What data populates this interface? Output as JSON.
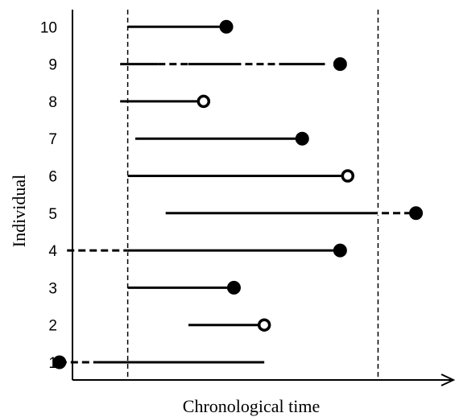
{
  "chart_data": {
    "type": "timeline",
    "xlabel": "Chronological time",
    "ylabel": "Individual",
    "y_ticks": [
      "1",
      "2",
      "3",
      "4",
      "5",
      "6",
      "7",
      "8",
      "9",
      "10"
    ],
    "study_window": {
      "start": 10,
      "end": 43
    },
    "xlim": [
      0,
      50
    ],
    "series": [
      {
        "individual": "1",
        "solid": [
          6,
          28
        ],
        "dashed": [
          [
            1,
            6
          ]
        ],
        "event": {
          "at": 1,
          "kind": "filled"
        }
      },
      {
        "individual": "2",
        "solid": [
          18,
          28
        ],
        "dashed": [],
        "event": {
          "at": 28,
          "kind": "open"
        }
      },
      {
        "individual": "3",
        "solid": [
          10,
          24
        ],
        "dashed": [],
        "event": {
          "at": 24,
          "kind": "filled"
        }
      },
      {
        "individual": "4",
        "solid": [
          10,
          38
        ],
        "dashed": [
          [
            2,
            10
          ]
        ],
        "event": {
          "at": 38,
          "kind": "filled"
        }
      },
      {
        "individual": "5",
        "solid": [
          15,
          42
        ],
        "dashed": [
          [
            42,
            48
          ]
        ],
        "event": {
          "at": 48,
          "kind": "filled"
        }
      },
      {
        "individual": "6",
        "solid": [
          10,
          39
        ],
        "dashed": [],
        "event": {
          "at": 39,
          "kind": "open"
        }
      },
      {
        "individual": "7",
        "solid": [
          11,
          33
        ],
        "dashed": [],
        "event": {
          "at": 33,
          "kind": "filled"
        }
      },
      {
        "individual": "8",
        "solid": [
          9,
          20
        ],
        "dashed": [],
        "event": {
          "at": 20,
          "kind": "open"
        }
      },
      {
        "individual": "9",
        "solid": [
          9,
          36
        ],
        "dashed": [
          [
            14,
            18
          ],
          [
            24,
            30
          ]
        ],
        "event": {
          "at": 38,
          "kind": "filled"
        }
      },
      {
        "individual": "10",
        "solid": [
          10,
          23
        ],
        "dashed": [],
        "event": {
          "at": 23,
          "kind": "filled"
        }
      }
    ],
    "colors": {
      "ink": "#000000",
      "background": "#ffffff"
    },
    "grid": false,
    "legend": "none"
  }
}
